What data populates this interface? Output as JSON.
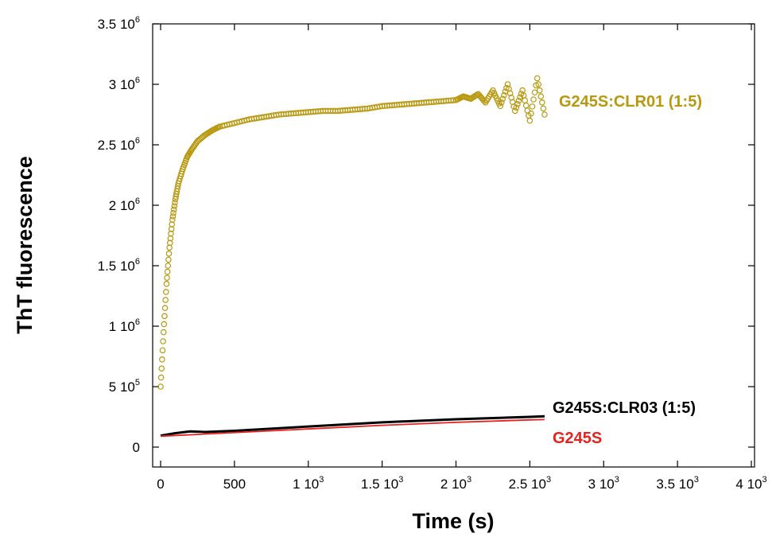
{
  "chart_data": {
    "type": "scatter",
    "xlabel": "Time (s)",
    "ylabel": "ThT fluorescence",
    "xlim": [
      0,
      4000
    ],
    "ylim": [
      0,
      3500000
    ],
    "grid": false,
    "legend": "inline labels at right end of each series",
    "x_ticks": [
      {
        "value": 0,
        "mant": "0",
        "exp": ""
      },
      {
        "value": 500,
        "mant": "500",
        "exp": ""
      },
      {
        "value": 1000,
        "mant": "1 10",
        "exp": "3"
      },
      {
        "value": 1500,
        "mant": "1.5 10",
        "exp": "3"
      },
      {
        "value": 2000,
        "mant": "2 10",
        "exp": "3"
      },
      {
        "value": 2500,
        "mant": "2.5 10",
        "exp": "3"
      },
      {
        "value": 3000,
        "mant": "3 10",
        "exp": "3"
      },
      {
        "value": 3500,
        "mant": "3.5 10",
        "exp": "3"
      },
      {
        "value": 4000,
        "mant": "4 10",
        "exp": "3"
      }
    ],
    "y_ticks": [
      {
        "value": 0,
        "mant": "0",
        "exp": ""
      },
      {
        "value": 500000,
        "mant": "5 10",
        "exp": "5"
      },
      {
        "value": 1000000,
        "mant": "1 10",
        "exp": "6"
      },
      {
        "value": 1500000,
        "mant": "1.5 10",
        "exp": "6"
      },
      {
        "value": 2000000,
        "mant": "2 10",
        "exp": "6"
      },
      {
        "value": 2500000,
        "mant": "2.5 10",
        "exp": "6"
      },
      {
        "value": 3000000,
        "mant": "3 10",
        "exp": "6"
      },
      {
        "value": 3500000,
        "mant": "3.5 10",
        "exp": "6"
      }
    ],
    "series": [
      {
        "name": "G245S:CLR01 (1:5)",
        "color": "#b8980f",
        "style": "open-circles",
        "x": [
          0,
          20,
          40,
          60,
          80,
          100,
          120,
          150,
          180,
          210,
          250,
          300,
          350,
          400,
          500,
          600,
          700,
          800,
          900,
          1000,
          1100,
          1200,
          1300,
          1400,
          1500,
          1600,
          1700,
          1800,
          1900,
          2000,
          2050,
          2100,
          2150,
          2200,
          2250,
          2300,
          2350,
          2400,
          2450,
          2500,
          2550,
          2600
        ],
        "y": [
          500000,
          950000,
          1350000,
          1650000,
          1880000,
          2050000,
          2180000,
          2300000,
          2400000,
          2460000,
          2530000,
          2580000,
          2620000,
          2650000,
          2680000,
          2710000,
          2730000,
          2750000,
          2760000,
          2770000,
          2780000,
          2780000,
          2790000,
          2800000,
          2820000,
          2830000,
          2840000,
          2850000,
          2860000,
          2870000,
          2900000,
          2880000,
          2920000,
          2850000,
          2950000,
          2820000,
          3000000,
          2780000,
          2950000,
          2700000,
          3050000,
          2750000
        ]
      },
      {
        "name": "G245S:CLR03 (1:5)",
        "color": "#000000",
        "style": "line",
        "x": [
          0,
          100,
          200,
          300,
          500,
          1000,
          1500,
          2000,
          2500,
          2600
        ],
        "y": [
          95000,
          115000,
          130000,
          125000,
          135000,
          170000,
          205000,
          230000,
          250000,
          255000
        ]
      },
      {
        "name": "G245S",
        "color": "#e8211c",
        "style": "line",
        "x": [
          0,
          500,
          1000,
          1500,
          2000,
          2500,
          2600
        ],
        "y": [
          90000,
          120000,
          150000,
          180000,
          205000,
          225000,
          228000
        ]
      }
    ]
  }
}
